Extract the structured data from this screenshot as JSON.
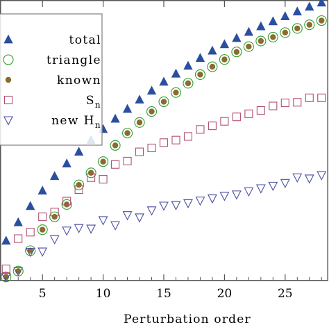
{
  "chart_data": {
    "type": "scatter",
    "title": "",
    "xlabel": "Perturbation order",
    "ylabel": "",
    "xlim": [
      1.5,
      28.5
    ],
    "ylim": [
      0,
      1
    ],
    "x_ticks": [
      5,
      10,
      15,
      20,
      25
    ],
    "y_ticks_labeled": false,
    "grid": false,
    "legend_placement": "top-left",
    "series": [
      {
        "name": "total",
        "marker": "triangle-up-filled",
        "color": "#2a4fa0",
        "x": [
          2,
          3,
          4,
          5,
          6,
          7,
          8,
          9,
          10,
          11,
          12,
          13,
          14,
          15,
          16,
          17,
          18,
          19,
          20,
          21,
          22,
          23,
          24,
          25,
          26,
          27,
          28
        ],
        "y": [
          0.142,
          0.208,
          0.266,
          0.321,
          0.373,
          0.418,
          0.46,
          0.502,
          0.541,
          0.578,
          0.613,
          0.646,
          0.678,
          0.71,
          0.739,
          0.767,
          0.795,
          0.821,
          0.844,
          0.866,
          0.888,
          0.908,
          0.926,
          0.944,
          0.961,
          0.978,
          0.993
        ]
      },
      {
        "name": "triangle",
        "marker": "circle-open",
        "color": "#2ea02e",
        "x": [
          2,
          3,
          4,
          5,
          6,
          7,
          8,
          9,
          10,
          11,
          12,
          13,
          14,
          15,
          16,
          17,
          18,
          19,
          20,
          21,
          22,
          23,
          24,
          25,
          26,
          27,
          28
        ],
        "y": [
          0.013,
          0.034,
          0.107,
          0.182,
          0.228,
          0.272,
          0.342,
          0.385,
          0.425,
          0.483,
          0.527,
          0.565,
          0.604,
          0.639,
          0.672,
          0.705,
          0.736,
          0.764,
          0.79,
          0.817,
          0.836,
          0.856,
          0.87,
          0.886,
          0.901,
          0.914,
          0.929
        ]
      },
      {
        "name": "known",
        "marker": "circle-filled",
        "color": "#8b6b2f",
        "x": [
          2,
          3,
          4,
          5,
          6,
          7,
          8,
          9,
          10,
          11,
          12,
          13,
          14,
          15,
          16,
          17,
          18,
          19,
          20,
          21,
          22,
          23,
          24,
          25,
          26,
          27,
          28
        ],
        "y": [
          0.013,
          0.034,
          0.107,
          0.182,
          0.228,
          0.272,
          0.342,
          0.385,
          0.425,
          0.483,
          0.527,
          0.565,
          0.604,
          0.639,
          0.672,
          0.705,
          0.736,
          0.764,
          0.79,
          0.817,
          0.836,
          0.856,
          0.87,
          0.886,
          0.901,
          0.914,
          0.929
        ]
      },
      {
        "name": "Sn",
        "name_main": "S",
        "name_sub": "n",
        "marker": "square-open",
        "color": "#b05070",
        "x": [
          2,
          3,
          4,
          5,
          6,
          7,
          8,
          9,
          10,
          11,
          12,
          13,
          14,
          15,
          16,
          17,
          18,
          19,
          20,
          21,
          22,
          23,
          24,
          25,
          26,
          27,
          28
        ],
        "y": [
          0.042,
          0.15,
          0.173,
          0.228,
          0.245,
          0.284,
          0.325,
          0.368,
          0.362,
          0.415,
          0.427,
          0.46,
          0.474,
          0.493,
          0.502,
          0.515,
          0.54,
          0.553,
          0.569,
          0.585,
          0.596,
          0.608,
          0.624,
          0.635,
          0.637,
          0.653,
          0.653
        ]
      },
      {
        "name": "new Hn",
        "name_main": "new H",
        "name_sub": "n",
        "marker": "triangle-down-open",
        "color": "#4a4fa0",
        "x": [
          2,
          3,
          4,
          5,
          6,
          7,
          8,
          9,
          10,
          11,
          12,
          13,
          14,
          15,
          16,
          17,
          18,
          19,
          20,
          21,
          22,
          23,
          24,
          25,
          26,
          27,
          28
        ],
        "y": [
          0.013,
          0.034,
          0.103,
          0.104,
          0.148,
          0.179,
          0.188,
          0.186,
          0.216,
          0.198,
          0.234,
          0.226,
          0.251,
          0.268,
          0.27,
          0.277,
          0.286,
          0.294,
          0.303,
          0.308,
          0.319,
          0.33,
          0.339,
          0.349,
          0.369,
          0.365,
          0.377
        ]
      }
    ]
  }
}
